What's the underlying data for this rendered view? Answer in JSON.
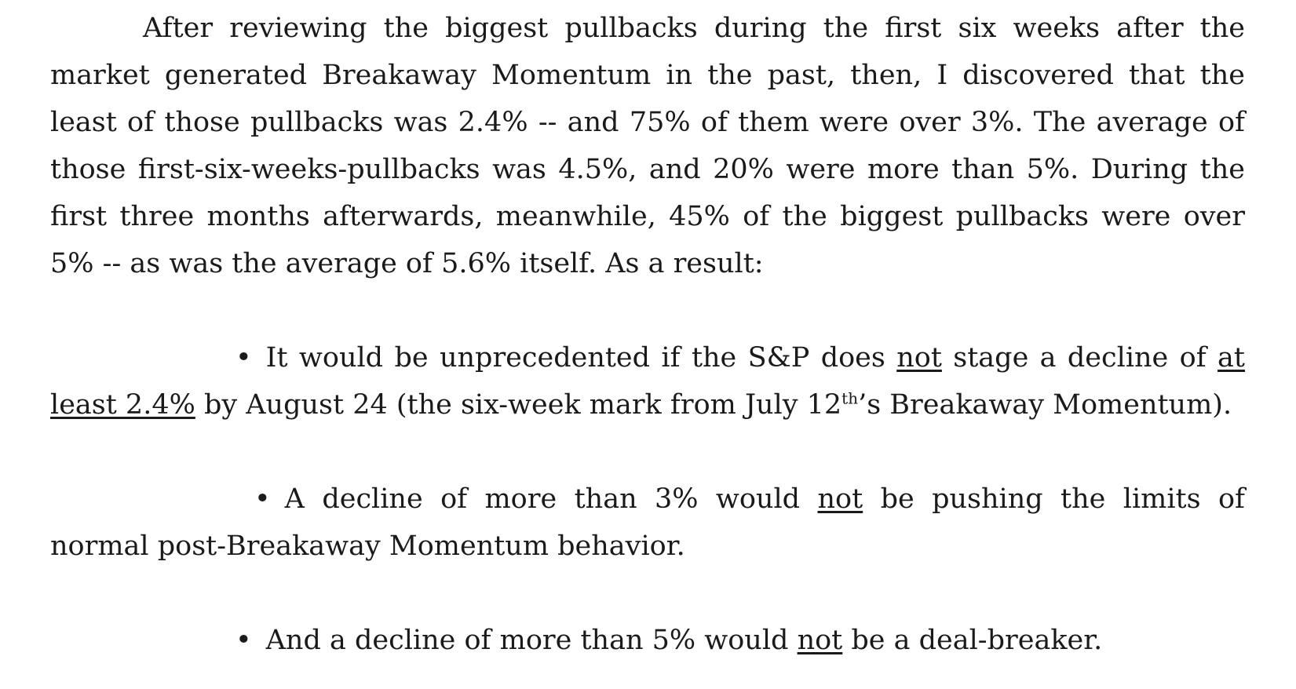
{
  "paragraph": {
    "text": "After reviewing the biggest pullbacks during the first six weeks after the market generated Breakaway Momentum in the past, then, I discovered that the least of those pullbacks was 2.4% -- and 75% of them were over 3%.  The average of those first-six-weeks-pullbacks was 4.5%, and 20% were more than 5%.  During the first three months afterwards, meanwhile, 45% of the biggest pullbacks were over 5% -- as was the average of 5.6% itself.  As a result:"
  },
  "bullets": [
    {
      "bullet": "•",
      "part1": "It would be unprecedented if the S&P does ",
      "underline1": "not",
      "part2": " stage a decline of ",
      "underline2": "at least 2.4%",
      "part3": " by August 24 (the six-week mark from July 12",
      "sup": "th",
      "part4": "’s Breakaway Momentum)."
    },
    {
      "bullet": "•",
      "part1": "A decline of more than 3% would ",
      "underline1": "not",
      "part2": " be pushing the limits of normal post-Breakaway Momentum behavior."
    },
    {
      "bullet": "•",
      "part1": "And a decline of more than 5% would ",
      "underline1": "not",
      "part2": " be a deal-breaker."
    }
  ]
}
